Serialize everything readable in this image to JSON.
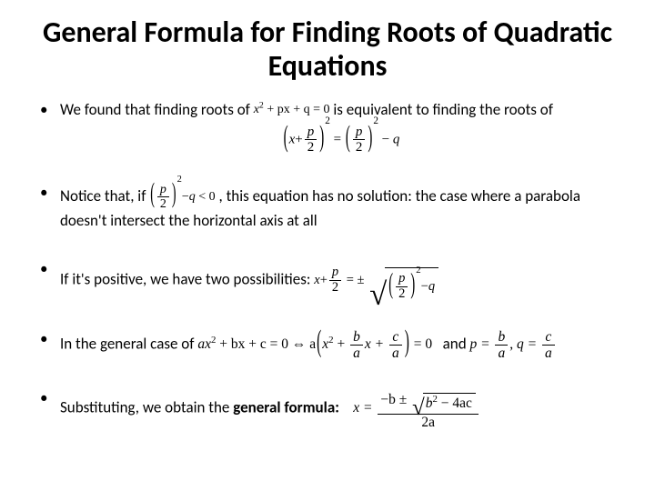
{
  "slide": {
    "title": "General Formula for Finding Roots of Quadratic Equations",
    "title_fontsize": 32,
    "title_weight": 700,
    "body_fontsize": 17,
    "text_color": "#000000",
    "background_color": "#ffffff",
    "font_family": "Calibri",
    "math_font_family": "Cambria Math"
  },
  "bullets": {
    "b1": {
      "t1": "We found that finding roots of ",
      "eq1_lhs": "x",
      "eq1_sup": "2",
      "eq1_mid": " + px + q = 0",
      "t2": " is equivalent to finding the roots of",
      "csq_x": "x",
      "csq_plus": "+",
      "csq_pnum": "p",
      "csq_pden": "2",
      "csq_eq": "=",
      "csq_rhs_pnum": "p",
      "csq_rhs_pden": "2",
      "csq_minus": "−",
      "csq_q": "q",
      "csq_pow": "2"
    },
    "b2": {
      "t1": "Notice that, if ",
      "cond_pnum": "p",
      "cond_pden": "2",
      "cond_pow": "2",
      "cond_minus": "−",
      "cond_q": "q",
      "cond_op": " < 0",
      "t2": ", this equation has no solution: the case where a parabola doesn't intersect the horizontal axis at all"
    },
    "b3": {
      "t1": "If it's positive, we have two possibilities: ",
      "sol_x": "x",
      "sol_plus": "+",
      "sol_pnum": "p",
      "sol_pden": "2",
      "sol_eq": " = ±",
      "sol_rnum": "p",
      "sol_rden": "2",
      "sol_rpow": "2",
      "sol_minus": "−",
      "sol_q": "q"
    },
    "b4": {
      "t1": "In the general case of ",
      "gen_a": "ax",
      "gen_p2": "2",
      "gen_mid": " + bx + c = 0 ⇔ a",
      "gen_lp": "(",
      "gen_x2": "x",
      "gen_p2b": "2",
      "gen_plus": " + ",
      "gen_bnum": "b",
      "gen_bden": "a",
      "gen_xplus": "x + ",
      "gen_cnum": "c",
      "gen_cden": "a",
      "gen_rp": ")",
      "gen_eq0": " = 0",
      "t2": "and ",
      "sub_p": "p = ",
      "sub_pbnum": "b",
      "sub_pbden": "a",
      "sub_comma": ",  ",
      "sub_q": "q = ",
      "sub_qcnum": "c",
      "sub_qcden": "a"
    },
    "b5": {
      "t1": "Substituting, we obtain the ",
      "bold": "general formula:",
      "qf_x": "x = ",
      "qf_num_pre": "−b ± ",
      "qf_disc_b": "b",
      "qf_disc_p": "2",
      "qf_disc_rest": " − 4ac",
      "qf_den": "2a"
    }
  }
}
